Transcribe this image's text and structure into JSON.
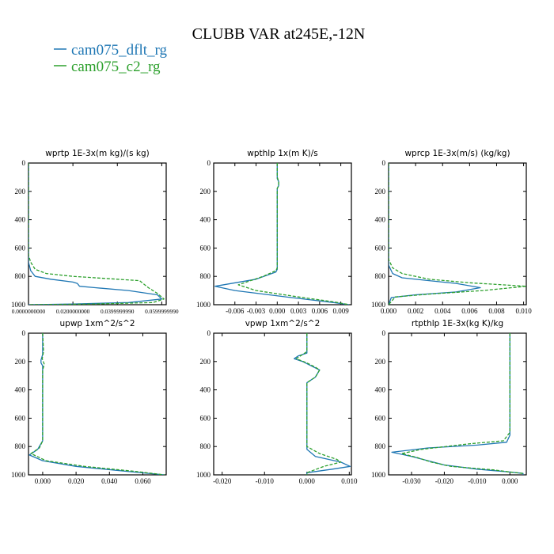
{
  "figure": {
    "title": "CLUBB VAR at245E,-12N",
    "legend": [
      {
        "label": "cam075_dflt_rg",
        "color": "#1f77b4",
        "dash": "solid"
      },
      {
        "label": "cam075_c2_rg",
        "color": "#2ca02c",
        "dash": "dashed"
      }
    ]
  },
  "chart_data": [
    {
      "type": "line",
      "title": "wprtp  1E-3x(m kg)/(s kg)",
      "xlim": [
        0.0,
        0.062
      ],
      "ylim": [
        1000,
        0
      ],
      "xticks": [
        0.0,
        0.02,
        0.04,
        0.06
      ],
      "xtick_labels": [
        "0.0000000000",
        "0.0200000000",
        "0.0399999990",
        "0.0599999990"
      ],
      "yticks": [
        0,
        200,
        400,
        600,
        800,
        1000
      ],
      "series": [
        {
          "name": "cam075_dflt_rg",
          "points": [
            [
              0,
              0
            ],
            [
              0,
              700
            ],
            [
              0.001,
              760
            ],
            [
              0.003,
              800
            ],
            [
              0.01,
              820
            ],
            [
              0.02,
              840
            ],
            [
              0.022,
              850
            ],
            [
              0.023,
              870
            ],
            [
              0.03,
              880
            ],
            [
              0.045,
              900
            ],
            [
              0.058,
              930
            ],
            [
              0.06,
              960
            ],
            [
              0.045,
              985
            ],
            [
              0.02,
              995
            ],
            [
              0,
              1000
            ]
          ]
        },
        {
          "name": "cam075_c2_rg",
          "points": [
            [
              0,
              0
            ],
            [
              0,
              650
            ],
            [
              0.001,
              700
            ],
            [
              0.003,
              750
            ],
            [
              0.008,
              780
            ],
            [
              0.02,
              800
            ],
            [
              0.04,
              820
            ],
            [
              0.05,
              830
            ],
            [
              0.054,
              880
            ],
            [
              0.058,
              920
            ],
            [
              0.061,
              960
            ],
            [
              0.056,
              985
            ],
            [
              0.03,
              995
            ],
            [
              0,
              1000
            ]
          ]
        }
      ]
    },
    {
      "type": "line",
      "title": "wpthlp  1x(m K)/s",
      "xlim": [
        -0.009,
        0.0105
      ],
      "ylim": [
        1000,
        0
      ],
      "xticks": [
        -0.006,
        -0.003,
        0.0,
        0.003,
        0.006,
        0.009
      ],
      "xtick_labels": [
        "-0.006",
        "-0.003",
        "0.000",
        "0.003",
        "0.006",
        "0.009"
      ],
      "yticks": [
        0,
        200,
        400,
        600,
        800,
        1000
      ],
      "series": [
        {
          "name": "cam075_dflt_rg",
          "points": [
            [
              0,
              0
            ],
            [
              0,
              110
            ],
            [
              0.0002,
              130
            ],
            [
              0.0002,
              160
            ],
            [
              0,
              180
            ],
            [
              0,
              750
            ],
            [
              -0.0002,
              770
            ],
            [
              -0.003,
              820
            ],
            [
              -0.0088,
              870
            ],
            [
              -0.006,
              900
            ],
            [
              0.002,
              950
            ],
            [
              0.008,
              985
            ],
            [
              0.0102,
              1000
            ]
          ]
        },
        {
          "name": "cam075_c2_rg",
          "points": [
            [
              0,
              0
            ],
            [
              0,
              100
            ],
            [
              0.0002,
              130
            ],
            [
              0.0002,
              160
            ],
            [
              0,
              180
            ],
            [
              0,
              740
            ],
            [
              -0.0002,
              760
            ],
            [
              -0.002,
              800
            ],
            [
              -0.0055,
              860
            ],
            [
              -0.003,
              900
            ],
            [
              0.003,
              945
            ],
            [
              0.008,
              980
            ],
            [
              0.0102,
              1000
            ]
          ]
        }
      ]
    },
    {
      "type": "line",
      "title": "wprcp  1E-3x(m/s) (kg/kg)",
      "xlim": [
        0.0,
        0.0102
      ],
      "ylim": [
        1000,
        0
      ],
      "xticks": [
        0.0,
        0.002,
        0.004,
        0.006,
        0.008,
        0.01
      ],
      "xtick_labels": [
        "0.000",
        "0.002",
        "0.004",
        "0.006",
        "0.008",
        "0.010"
      ],
      "yticks": [
        0,
        200,
        400,
        600,
        800,
        1000
      ],
      "series": [
        {
          "name": "cam075_dflt_rg",
          "points": [
            [
              0,
              0
            ],
            [
              0,
              720
            ],
            [
              0.0003,
              780
            ],
            [
              0.001,
              810
            ],
            [
              0.003,
              830
            ],
            [
              0.005,
              850
            ],
            [
              0.0068,
              880
            ],
            [
              0.005,
              910
            ],
            [
              0.002,
              930
            ],
            [
              0.0002,
              950
            ],
            [
              0,
              1000
            ]
          ]
        },
        {
          "name": "cam075_c2_rg",
          "points": [
            [
              0,
              0
            ],
            [
              0,
              680
            ],
            [
              0.0003,
              740
            ],
            [
              0.001,
              780
            ],
            [
              0.003,
              820
            ],
            [
              0.006,
              845
            ],
            [
              0.0102,
              870
            ],
            [
              0.007,
              900
            ],
            [
              0.003,
              925
            ],
            [
              0.0005,
              945
            ],
            [
              0,
              1000
            ]
          ]
        }
      ]
    },
    {
      "type": "line",
      "title": "upwp   1xm^2/s^2",
      "xlim": [
        -0.0085,
        0.074
      ],
      "ylim": [
        1000,
        0
      ],
      "xticks": [
        0.0,
        0.02,
        0.04,
        0.06
      ],
      "xtick_labels": [
        "0.000",
        "0.020",
        "0.040",
        "0.060"
      ],
      "yticks": [
        0,
        200,
        400,
        600,
        800,
        1000
      ],
      "series": [
        {
          "name": "cam075_dflt_rg",
          "points": [
            [
              0,
              0
            ],
            [
              0,
              150
            ],
            [
              -0.001,
              190
            ],
            [
              -0.001,
              210
            ],
            [
              0,
              230
            ],
            [
              0,
              760
            ],
            [
              -0.003,
              820
            ],
            [
              -0.008,
              860
            ],
            [
              0,
              900
            ],
            [
              0.02,
              940
            ],
            [
              0.05,
              975
            ],
            [
              0.073,
              1000
            ]
          ]
        },
        {
          "name": "cam075_c2_rg",
          "points": [
            [
              0,
              0
            ],
            [
              0.0005,
              130
            ],
            [
              -0.0003,
              180
            ],
            [
              0.001,
              220
            ],
            [
              0,
              260
            ],
            [
              0,
              760
            ],
            [
              -0.002,
              810
            ],
            [
              -0.007,
              850
            ],
            [
              0.002,
              900
            ],
            [
              0.025,
              940
            ],
            [
              0.055,
              975
            ],
            [
              0.073,
              1000
            ]
          ]
        }
      ]
    },
    {
      "type": "line",
      "title": "vpwp   1xm^2/s^2",
      "xlim": [
        -0.022,
        0.0105
      ],
      "ylim": [
        1000,
        0
      ],
      "xticks": [
        -0.02,
        -0.01,
        0.0,
        0.01
      ],
      "xtick_labels": [
        "-0.020",
        "-0.010",
        "0.000",
        "0.010"
      ],
      "yticks": [
        0,
        200,
        400,
        600,
        800,
        1000
      ],
      "series": [
        {
          "name": "cam075_dflt_rg",
          "points": [
            [
              0,
              0
            ],
            [
              0,
              140
            ],
            [
              -0.002,
              160
            ],
            [
              -0.003,
              180
            ],
            [
              -0.001,
              200
            ],
            [
              0.001,
              230
            ],
            [
              0.003,
              260
            ],
            [
              0.002,
              310
            ],
            [
              0,
              350
            ],
            [
              0,
              820
            ],
            [
              0.002,
              870
            ],
            [
              0.008,
              910
            ],
            [
              0.0102,
              940
            ],
            [
              0.006,
              960
            ],
            [
              0,
              985
            ],
            [
              0,
              1000
            ]
          ]
        },
        {
          "name": "cam075_c2_rg",
          "points": [
            [
              0,
              0
            ],
            [
              0,
              130
            ],
            [
              -0.0015,
              160
            ],
            [
              -0.0025,
              180
            ],
            [
              0,
              210
            ],
            [
              0.002,
              240
            ],
            [
              0.003,
              260
            ],
            [
              0.002,
              310
            ],
            [
              0,
              350
            ],
            [
              0,
              800
            ],
            [
              0.003,
              850
            ],
            [
              0.007,
              890
            ],
            [
              0.008,
              910
            ],
            [
              0.004,
              940
            ],
            [
              0,
              985
            ],
            [
              0,
              1000
            ]
          ]
        }
      ]
    },
    {
      "type": "line",
      "title": "rtpthlp  1E-3x(kg K)/kg",
      "xlim": [
        -0.037,
        0.005
      ],
      "ylim": [
        1000,
        0
      ],
      "xticks": [
        -0.03,
        -0.02,
        -0.01,
        0.0
      ],
      "xtick_labels": [
        "-0.030",
        "-0.020",
        "-0.010",
        "0.000"
      ],
      "yticks": [
        0,
        200,
        400,
        600,
        800,
        1000
      ],
      "series": [
        {
          "name": "cam075_dflt_rg",
          "points": [
            [
              0,
              0
            ],
            [
              0,
              720
            ],
            [
              -0.001,
              770
            ],
            [
              -0.01,
              790
            ],
            [
              -0.025,
              810
            ],
            [
              -0.036,
              840
            ],
            [
              -0.03,
              870
            ],
            [
              -0.025,
              900
            ],
            [
              -0.02,
              930
            ],
            [
              -0.01,
              960
            ],
            [
              0,
              980
            ],
            [
              0.004,
              990
            ],
            [
              0.004,
              1000
            ]
          ]
        },
        {
          "name": "cam075_c2_rg",
          "points": [
            [
              0,
              0
            ],
            [
              0,
              700
            ],
            [
              -0.002,
              760
            ],
            [
              -0.012,
              780
            ],
            [
              -0.027,
              820
            ],
            [
              -0.033,
              850
            ],
            [
              -0.028,
              880
            ],
            [
              -0.024,
              910
            ],
            [
              -0.018,
              940
            ],
            [
              -0.005,
              965
            ],
            [
              0,
              980
            ],
            [
              0.004,
              990
            ],
            [
              0.004,
              1000
            ]
          ]
        }
      ]
    }
  ]
}
